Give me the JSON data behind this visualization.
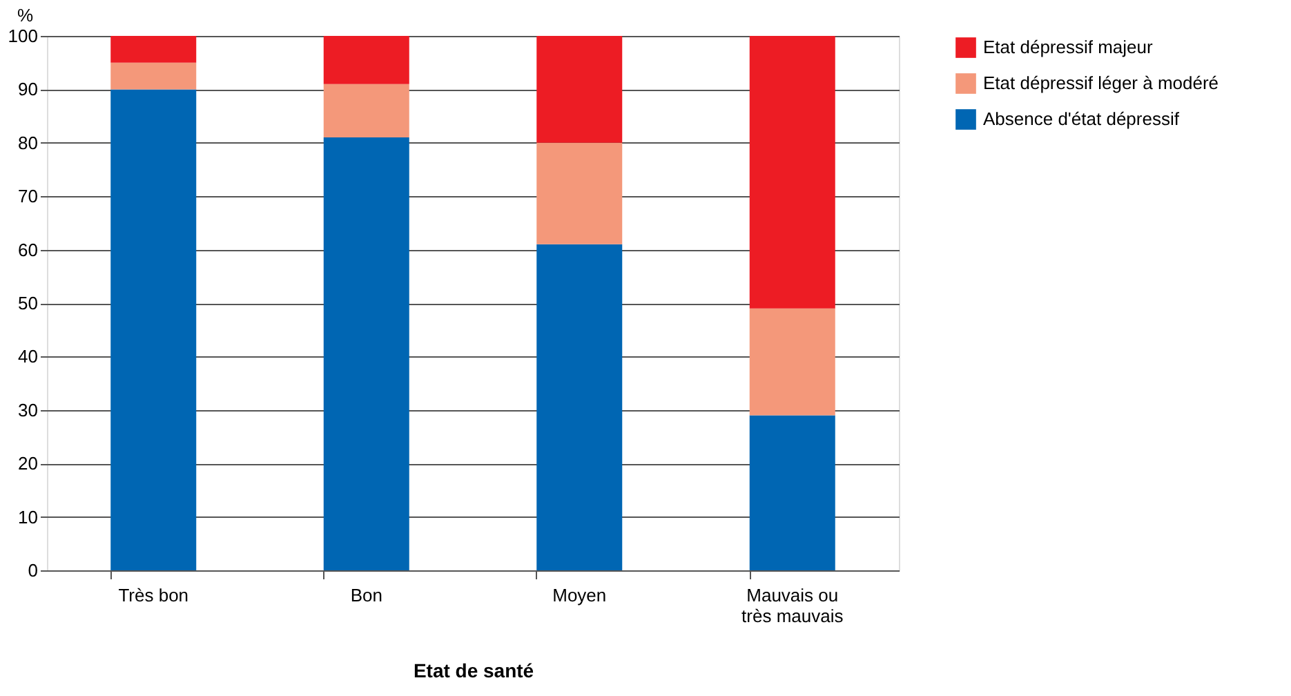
{
  "chart_data": {
    "type": "bar",
    "stacked": true,
    "xlabel": "Etat de santé",
    "ylabel": "%",
    "categories": [
      "Très bon",
      "Bon",
      "Moyen",
      "Mauvais ou très mauvais"
    ],
    "series": [
      {
        "name": "Absence d'état dépressif",
        "color": "#0066b3",
        "values": [
          90,
          81,
          61,
          29
        ]
      },
      {
        "name": "Etat dépressif léger à modéré",
        "color": "#f4987a",
        "values": [
          5,
          10,
          19,
          20
        ]
      },
      {
        "name": "Etat dépressif majeur",
        "color": "#ed1c24",
        "values": [
          5,
          9,
          20,
          51
        ]
      }
    ],
    "ylim": [
      0,
      100
    ],
    "yticks": [
      0,
      10,
      20,
      30,
      40,
      50,
      60,
      70,
      80,
      90,
      100
    ],
    "grid": "y",
    "legend": "right"
  }
}
